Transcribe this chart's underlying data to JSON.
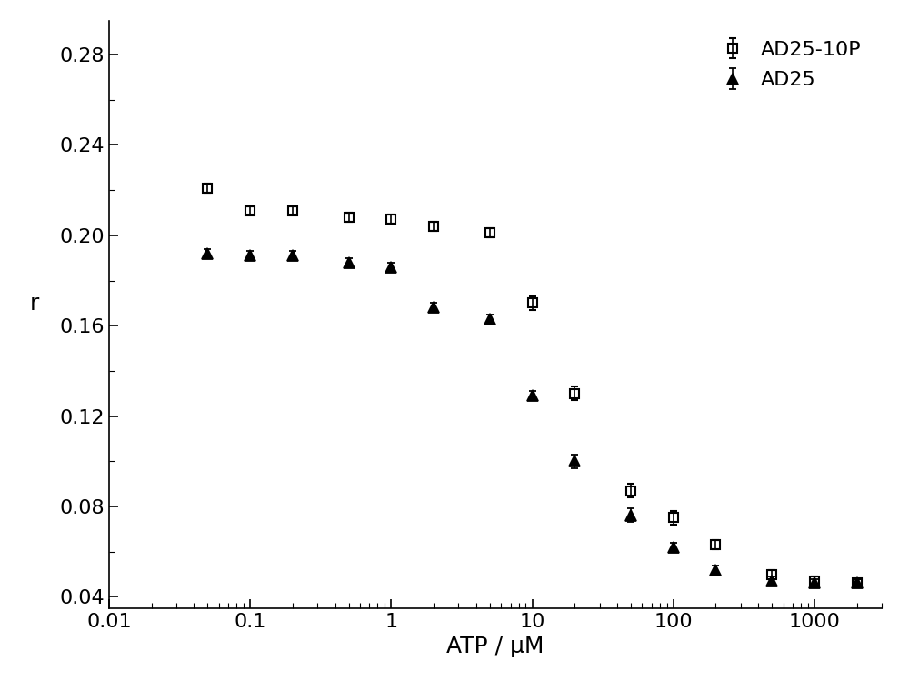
{
  "title": "",
  "xlabel": "ATP / μM",
  "ylabel": "r",
  "xlim": [
    0.01,
    3000
  ],
  "ylim": [
    0.035,
    0.295
  ],
  "yticks": [
    0.04,
    0.08,
    0.12,
    0.16,
    0.2,
    0.24,
    0.28
  ],
  "ytick_labels": [
    "0.04",
    "0.08",
    "0.12",
    "0.16",
    "0.20",
    "0.24",
    "0.28"
  ],
  "AD25_10P_x": [
    0.05,
    0.1,
    0.2,
    0.5,
    1,
    2,
    5,
    10,
    20,
    50,
    100,
    200,
    500,
    1000,
    2000
  ],
  "AD25_10P_y": [
    0.221,
    0.211,
    0.211,
    0.208,
    0.207,
    0.204,
    0.201,
    0.17,
    0.13,
    0.087,
    0.075,
    0.063,
    0.05,
    0.047,
    0.046
  ],
  "AD25_10P_yerr": [
    0.002,
    0.002,
    0.002,
    0.002,
    0.002,
    0.002,
    0.002,
    0.003,
    0.003,
    0.003,
    0.003,
    0.002,
    0.002,
    0.002,
    0.002
  ],
  "AD25_x": [
    0.05,
    0.1,
    0.2,
    0.5,
    1,
    2,
    5,
    10,
    20,
    50,
    100,
    200,
    500,
    1000,
    2000
  ],
  "AD25_y": [
    0.192,
    0.191,
    0.191,
    0.188,
    0.186,
    0.168,
    0.163,
    0.129,
    0.1,
    0.076,
    0.062,
    0.052,
    0.047,
    0.046,
    0.046
  ],
  "AD25_yerr": [
    0.002,
    0.002,
    0.002,
    0.002,
    0.002,
    0.002,
    0.002,
    0.002,
    0.003,
    0.003,
    0.002,
    0.002,
    0.002,
    0.002,
    0.002
  ],
  "legend_labels": [
    "AD25-10P",
    "AD25"
  ],
  "marker_size_square": 7,
  "marker_size_triangle": 9,
  "color": "black",
  "background_color": "white",
  "font_size_label": 18,
  "font_size_tick": 16,
  "font_size_legend": 16
}
